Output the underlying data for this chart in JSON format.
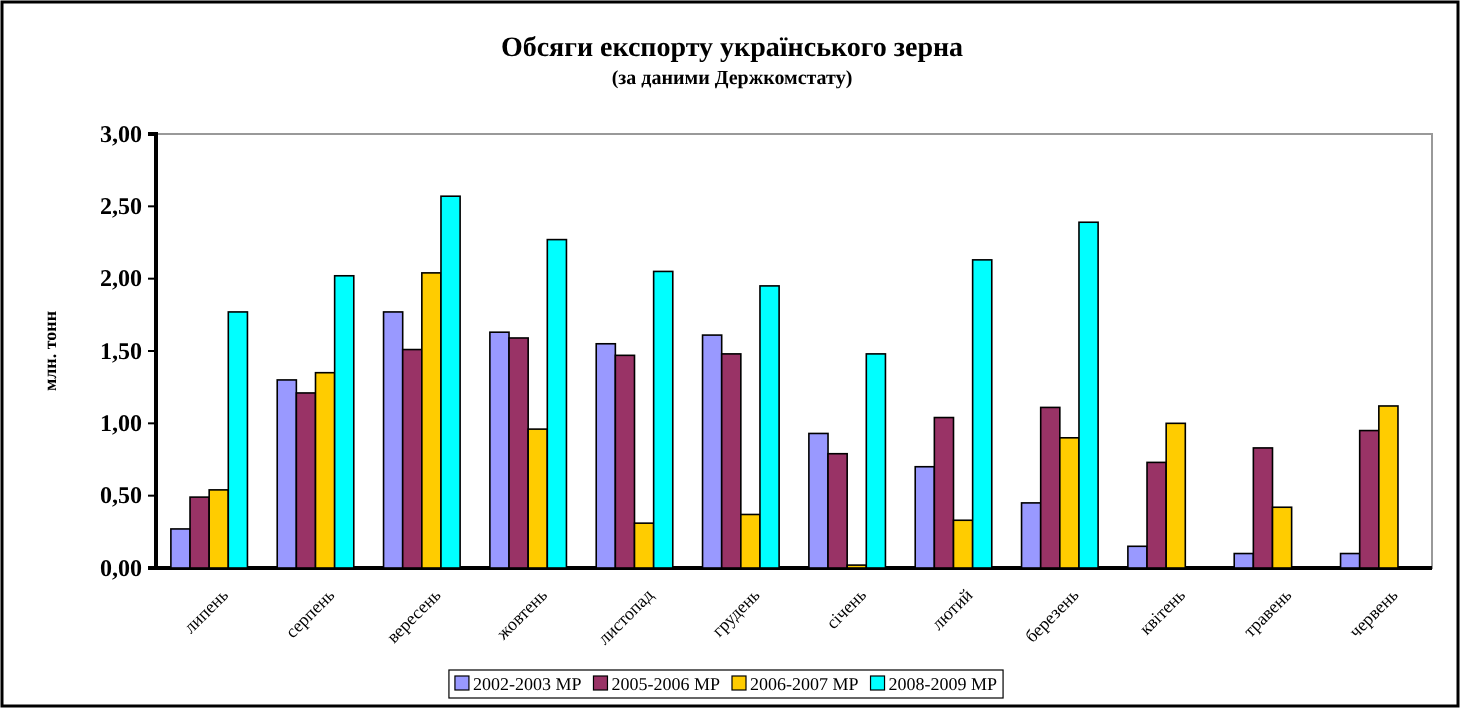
{
  "chart_data": {
    "type": "bar",
    "title": "Обсяги експорту українського зерна",
    "subtitle": "(за даними Держкомстату)",
    "ylabel": "млн. тонн",
    "categories": [
      "липень",
      "серпень",
      "вересень",
      "жовтень",
      "листопад",
      "грудень",
      "січень",
      "лютий",
      "березень",
      "квітень",
      "травень",
      "червень"
    ],
    "series": [
      {
        "name": "2002-2003 МР",
        "color": "#9999ff",
        "values": [
          0.27,
          1.3,
          1.77,
          1.63,
          1.55,
          1.61,
          0.93,
          0.7,
          0.45,
          0.15,
          0.1,
          0.1
        ]
      },
      {
        "name": "2005-2006 МР",
        "color": "#993366",
        "values": [
          0.49,
          1.21,
          1.51,
          1.59,
          1.47,
          1.48,
          0.79,
          1.04,
          1.11,
          0.73,
          0.83,
          0.95
        ]
      },
      {
        "name": "2006-2007 МР",
        "color": "#ffcc00",
        "values": [
          0.54,
          1.35,
          2.04,
          0.96,
          0.31,
          0.37,
          0.02,
          0.33,
          0.9,
          1.0,
          0.42,
          1.12
        ]
      },
      {
        "name": "2008-2009 МР",
        "color": "#00ffff",
        "values": [
          1.77,
          2.02,
          2.57,
          2.27,
          2.05,
          1.95,
          1.48,
          2.13,
          2.39,
          null,
          null,
          null
        ]
      }
    ],
    "ylim": [
      0,
      3
    ],
    "yticks": [
      {
        "value": 0,
        "label": "0,00"
      },
      {
        "value": 0.5,
        "label": "0,50"
      },
      {
        "value": 1,
        "label": "1,00"
      },
      {
        "value": 1.5,
        "label": "1,50"
      },
      {
        "value": 2,
        "label": "2,00"
      },
      {
        "value": 2.5,
        "label": "2,50"
      },
      {
        "value": 3,
        "label": "3,00"
      }
    ],
    "grid": false,
    "legend": "bottom"
  }
}
